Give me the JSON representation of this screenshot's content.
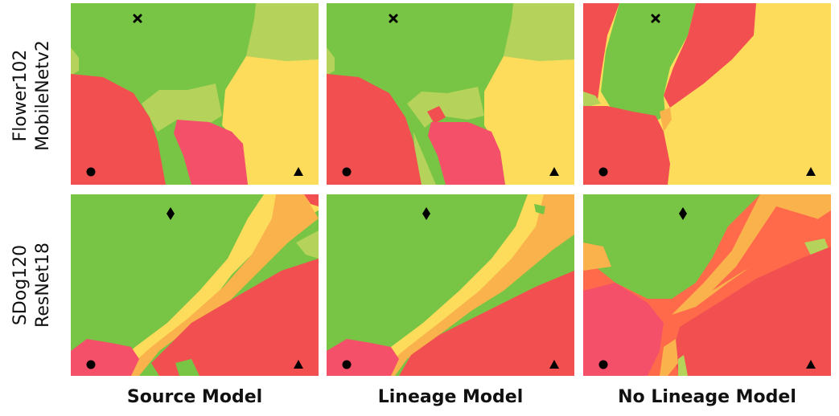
{
  "rows": [
    {
      "label_line1": "Flower102",
      "label_line2": "MobileNetv2"
    },
    {
      "label_line1": "SDog120",
      "label_line2": "ResNet18"
    }
  ],
  "columns": [
    {
      "label": "Source Model"
    },
    {
      "label": "Lineage Model"
    },
    {
      "label": "No Lineage Model"
    }
  ],
  "markers": {
    "row1": [
      "x-cross",
      "circle",
      "triangle"
    ],
    "row2": [
      "diamond",
      "circle",
      "triangle"
    ]
  },
  "colors": {
    "green": "#78c444",
    "light_green": "#b5d35a",
    "yellow": "#fddc5c",
    "orange": "#f9b24c",
    "red": "#f25050",
    "pink": "#f4506a"
  }
}
